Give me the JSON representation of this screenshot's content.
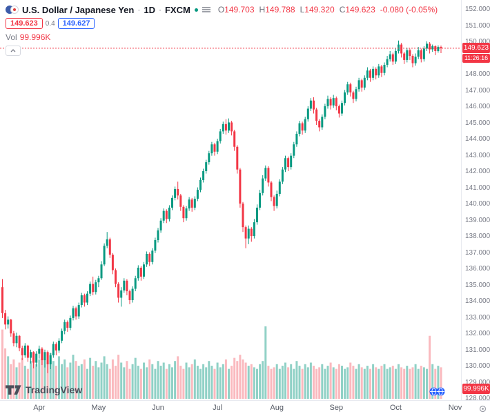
{
  "header": {
    "symbol_title": "U.S. Dollar / Japanese Yen",
    "separator": "·",
    "timeframe": "1D",
    "exchange": "FXCM",
    "ohlc": {
      "open_label": "O",
      "open": "149.703",
      "high_label": "H",
      "high": "149.788",
      "low_label": "L",
      "low": "149.320",
      "close_label": "C",
      "close": "149.623",
      "change": "-0.080 (-0.05%)"
    },
    "sell_price": "149.623",
    "spread": "0.4",
    "buy_price": "149.627",
    "volume_label": "Vol",
    "volume_separator": "·",
    "volume_value": "99.996K"
  },
  "badges": {
    "last_price": "149.623",
    "countdown": "11:26:16",
    "last_volume": "99.996K"
  },
  "price_axis": {
    "min": 128,
    "max": 152,
    "step": 1,
    "decimals": 3
  },
  "footer": {
    "logo_text": "TradingView"
  },
  "colors": {
    "up": "#089981",
    "down": "#f23645",
    "volume_up": "rgba(8,153,129,0.45)",
    "volume_down": "rgba(242,54,69,0.35)",
    "accent_blue": "#2962ff",
    "text_dark": "#131722",
    "text_gray": "#787b86"
  },
  "chart_data": {
    "type": "candlestick",
    "title": "U.S. Dollar / Japanese Yen · 1D · FXCM",
    "xlabel": "",
    "ylabel": "",
    "ylim": [
      127.9,
      152.4
    ],
    "grid": false,
    "legend_position": "none",
    "months": [
      {
        "label": "Apr",
        "day": 13
      },
      {
        "label": "May",
        "day": 34
      },
      {
        "label": "Jun",
        "day": 55
      },
      {
        "label": "Jul",
        "day": 76
      },
      {
        "label": "Aug",
        "day": 97
      },
      {
        "label": "Sep",
        "day": 118
      },
      {
        "label": "Oct",
        "day": 139
      },
      {
        "label": "Nov",
        "day": 160
      }
    ],
    "last": {
      "open": 149.703,
      "high": 149.788,
      "low": 149.32,
      "close": 149.623,
      "change": -0.08,
      "change_percent": -0.05
    },
    "candles": [
      [
        134.9,
        135.4,
        133.0,
        133.3
      ],
      [
        133.3,
        133.5,
        132.3,
        132.6
      ],
      [
        132.6,
        133.1,
        132.35,
        132.9
      ],
      [
        132.9,
        132.95,
        131.85,
        132.05
      ],
      [
        132.05,
        132.2,
        131.25,
        131.45
      ],
      [
        131.45,
        132.1,
        131.2,
        131.9
      ],
      [
        131.9,
        131.95,
        130.95,
        131.15
      ],
      [
        131.15,
        131.3,
        130.4,
        130.7
      ],
      [
        130.7,
        131.45,
        130.55,
        131.3
      ],
      [
        131.3,
        131.35,
        130.3,
        130.55
      ],
      [
        130.55,
        131.05,
        130.2,
        130.9
      ],
      [
        130.9,
        130.95,
        129.9,
        130.25
      ],
      [
        130.25,
        130.95,
        130.0,
        130.8
      ],
      [
        130.8,
        131.3,
        130.5,
        131.1
      ],
      [
        131.1,
        131.2,
        130.1,
        130.4
      ],
      [
        130.4,
        131.05,
        129.95,
        130.9
      ],
      [
        130.9,
        131.0,
        129.6,
        130.15
      ],
      [
        130.15,
        130.85,
        129.85,
        130.7
      ],
      [
        130.7,
        131.55,
        130.55,
        131.4
      ],
      [
        131.4,
        131.5,
        130.7,
        131.0
      ],
      [
        131.0,
        131.75,
        130.85,
        131.6
      ],
      [
        131.6,
        132.35,
        131.45,
        132.2
      ],
      [
        132.2,
        132.9,
        132.0,
        132.75
      ],
      [
        132.75,
        132.85,
        132.15,
        132.4
      ],
      [
        132.4,
        133.15,
        132.25,
        133.0
      ],
      [
        133.0,
        133.75,
        132.85,
        133.6
      ],
      [
        133.6,
        133.7,
        132.9,
        133.1
      ],
      [
        133.1,
        133.95,
        132.95,
        133.8
      ],
      [
        133.8,
        134.55,
        133.65,
        134.4
      ],
      [
        134.4,
        134.5,
        133.7,
        133.95
      ],
      [
        133.95,
        134.65,
        133.8,
        134.5
      ],
      [
        134.5,
        135.25,
        134.35,
        135.1
      ],
      [
        135.1,
        135.55,
        134.4,
        134.6
      ],
      [
        134.6,
        135.35,
        134.45,
        135.2
      ],
      [
        135.2,
        135.6,
        134.9,
        135.45
      ],
      [
        135.45,
        136.5,
        135.35,
        136.3
      ],
      [
        136.3,
        137.6,
        136.2,
        137.45
      ],
      [
        137.45,
        138.3,
        137.3,
        137.85
      ],
      [
        137.85,
        137.95,
        136.7,
        136.9
      ],
      [
        136.9,
        137.0,
        135.7,
        135.95
      ],
      [
        135.95,
        136.05,
        134.9,
        135.1
      ],
      [
        135.1,
        135.2,
        133.95,
        134.25
      ],
      [
        134.25,
        134.9,
        133.7,
        134.7
      ],
      [
        134.7,
        135.45,
        134.55,
        135.3
      ],
      [
        135.3,
        135.4,
        134.4,
        134.65
      ],
      [
        134.65,
        134.75,
        133.85,
        134.1
      ],
      [
        134.1,
        134.95,
        133.95,
        134.8
      ],
      [
        134.8,
        135.6,
        134.65,
        135.45
      ],
      [
        135.45,
        136.25,
        135.3,
        136.1
      ],
      [
        136.1,
        136.2,
        135.3,
        135.55
      ],
      [
        135.55,
        136.45,
        135.4,
        136.3
      ],
      [
        136.3,
        137.1,
        136.15,
        136.95
      ],
      [
        136.95,
        137.05,
        136.2,
        136.45
      ],
      [
        136.45,
        137.3,
        136.3,
        137.15
      ],
      [
        137.15,
        137.95,
        137.0,
        137.8
      ],
      [
        137.8,
        138.55,
        137.65,
        138.4
      ],
      [
        138.4,
        139.15,
        138.25,
        139.0
      ],
      [
        139.0,
        139.75,
        138.85,
        139.6
      ],
      [
        139.6,
        139.7,
        138.85,
        139.1
      ],
      [
        139.1,
        139.95,
        138.95,
        139.8
      ],
      [
        139.8,
        140.55,
        139.65,
        140.4
      ],
      [
        140.4,
        141.1,
        140.25,
        140.95
      ],
      [
        140.95,
        141.4,
        140.3,
        140.55
      ],
      [
        140.55,
        140.65,
        139.6,
        139.85
      ],
      [
        139.85,
        139.95,
        138.9,
        139.15
      ],
      [
        139.15,
        139.9,
        139.0,
        139.75
      ],
      [
        139.75,
        140.45,
        139.6,
        140.3
      ],
      [
        140.3,
        140.4,
        139.55,
        139.8
      ],
      [
        139.8,
        140.5,
        139.65,
        140.35
      ],
      [
        140.35,
        141.05,
        140.2,
        140.9
      ],
      [
        140.9,
        141.65,
        140.75,
        141.5
      ],
      [
        141.5,
        142.2,
        141.35,
        142.05
      ],
      [
        142.05,
        142.75,
        141.9,
        142.6
      ],
      [
        142.6,
        143.3,
        142.45,
        143.15
      ],
      [
        143.15,
        143.85,
        143.0,
        143.7
      ],
      [
        143.7,
        143.8,
        143.0,
        143.25
      ],
      [
        143.25,
        144.05,
        143.1,
        143.9
      ],
      [
        143.9,
        144.65,
        143.75,
        144.5
      ],
      [
        144.5,
        145.1,
        144.35,
        144.95
      ],
      [
        144.95,
        145.25,
        144.3,
        144.55
      ],
      [
        144.55,
        145.3,
        144.4,
        145.05
      ],
      [
        145.05,
        145.15,
        144.25,
        144.5
      ],
      [
        144.5,
        144.6,
        143.3,
        143.55
      ],
      [
        143.55,
        143.65,
        141.9,
        142.15
      ],
      [
        142.15,
        142.25,
        139.8,
        140.05
      ],
      [
        140.05,
        140.15,
        138.3,
        138.6
      ],
      [
        138.6,
        138.7,
        137.3,
        137.9
      ],
      [
        137.9,
        138.7,
        137.55,
        138.5
      ],
      [
        138.5,
        138.6,
        137.7,
        138.05
      ],
      [
        138.05,
        139.1,
        137.9,
        138.9
      ],
      [
        138.9,
        140.0,
        138.75,
        139.8
      ],
      [
        139.8,
        140.9,
        139.65,
        140.7
      ],
      [
        140.7,
        141.8,
        140.55,
        141.6
      ],
      [
        141.6,
        142.4,
        141.45,
        142.25
      ],
      [
        142.25,
        142.35,
        141.1,
        141.35
      ],
      [
        141.35,
        141.45,
        140.2,
        140.45
      ],
      [
        140.45,
        140.55,
        139.6,
        139.9
      ],
      [
        139.9,
        140.85,
        139.75,
        140.65
      ],
      [
        140.65,
        141.55,
        140.5,
        141.4
      ],
      [
        141.4,
        142.3,
        141.25,
        142.15
      ],
      [
        142.15,
        143.0,
        142.0,
        142.85
      ],
      [
        142.85,
        142.95,
        142.05,
        142.3
      ],
      [
        142.3,
        143.15,
        142.15,
        143.0
      ],
      [
        143.0,
        143.85,
        142.85,
        143.7
      ],
      [
        143.7,
        144.5,
        143.55,
        144.35
      ],
      [
        144.35,
        145.15,
        144.2,
        145.0
      ],
      [
        145.0,
        145.1,
        144.3,
        144.55
      ],
      [
        144.55,
        145.4,
        144.4,
        145.25
      ],
      [
        145.25,
        146.05,
        145.1,
        145.9
      ],
      [
        145.9,
        146.55,
        145.75,
        146.4
      ],
      [
        146.4,
        146.6,
        145.6,
        145.85
      ],
      [
        145.85,
        145.95,
        144.9,
        145.15
      ],
      [
        145.15,
        145.25,
        144.5,
        144.75
      ],
      [
        144.75,
        145.55,
        144.6,
        145.4
      ],
      [
        145.4,
        146.2,
        145.25,
        146.05
      ],
      [
        146.05,
        146.7,
        145.9,
        146.5
      ],
      [
        146.5,
        146.6,
        145.85,
        146.1
      ],
      [
        146.1,
        146.75,
        145.95,
        146.55
      ],
      [
        146.55,
        146.65,
        145.8,
        146.05
      ],
      [
        146.05,
        146.15,
        145.35,
        145.6
      ],
      [
        145.6,
        146.4,
        145.45,
        146.25
      ],
      [
        146.25,
        147.05,
        146.1,
        146.9
      ],
      [
        146.9,
        147.55,
        146.75,
        147.4
      ],
      [
        147.4,
        147.5,
        146.65,
        146.9
      ],
      [
        146.9,
        147.0,
        146.25,
        146.5
      ],
      [
        146.5,
        147.25,
        146.35,
        147.1
      ],
      [
        147.1,
        147.8,
        146.95,
        147.65
      ],
      [
        147.65,
        147.75,
        146.95,
        147.2
      ],
      [
        147.2,
        147.95,
        147.05,
        147.8
      ],
      [
        147.8,
        148.45,
        147.65,
        148.25
      ],
      [
        148.25,
        148.35,
        147.55,
        147.8
      ],
      [
        147.8,
        148.5,
        147.65,
        148.35
      ],
      [
        148.35,
        148.45,
        147.7,
        147.95
      ],
      [
        147.95,
        148.65,
        147.8,
        148.5
      ],
      [
        148.5,
        148.6,
        147.85,
        148.1
      ],
      [
        148.1,
        148.75,
        147.95,
        148.6
      ],
      [
        148.6,
        149.15,
        148.45,
        148.95
      ],
      [
        148.95,
        149.45,
        148.8,
        149.25
      ],
      [
        149.25,
        149.35,
        148.6,
        148.8
      ],
      [
        148.8,
        149.6,
        148.65,
        149.45
      ],
      [
        149.45,
        150.1,
        149.3,
        149.85
      ],
      [
        149.85,
        149.95,
        149.05,
        149.3
      ],
      [
        149.3,
        149.4,
        148.65,
        148.9
      ],
      [
        148.9,
        149.65,
        148.75,
        149.5
      ],
      [
        149.5,
        149.6,
        148.9,
        149.15
      ],
      [
        149.15,
        149.25,
        148.45,
        148.7
      ],
      [
        148.7,
        149.3,
        148.55,
        149.1
      ],
      [
        149.1,
        149.7,
        148.95,
        149.5
      ],
      [
        149.5,
        149.6,
        148.75,
        148.95
      ],
      [
        148.95,
        149.75,
        148.8,
        149.6
      ],
      [
        149.6,
        150.05,
        149.45,
        149.9
      ],
      [
        149.9,
        150.0,
        149.3,
        149.55
      ],
      [
        149.55,
        149.85,
        149.4,
        149.75
      ],
      [
        149.75,
        149.8,
        149.2,
        149.45
      ],
      [
        149.45,
        149.8,
        149.35,
        149.7
      ],
      [
        149.703,
        149.788,
        149.32,
        149.623
      ]
    ],
    "volumes": [
      220,
      160,
      135,
      110,
      125,
      100,
      115,
      130,
      105,
      95,
      120,
      140,
      110,
      125,
      160,
      130,
      115,
      145,
      120,
      105,
      135,
      110,
      125,
      100,
      115,
      140,
      120,
      105,
      110,
      125,
      95,
      130,
      105,
      120,
      100,
      115,
      135,
      110,
      95,
      125,
      105,
      140,
      115,
      100,
      120,
      95,
      110,
      130,
      105,
      95,
      115,
      100,
      125,
      110,
      95,
      120,
      105,
      115,
      95,
      110,
      100,
      120,
      135,
      105,
      95,
      115,
      100,
      110,
      125,
      105,
      95,
      110,
      100,
      120,
      105,
      95,
      115,
      100,
      110,
      125,
      95,
      105,
      130,
      120,
      140,
      125,
      115,
      105,
      110,
      100,
      95,
      110,
      120,
      230,
      105,
      95,
      100,
      110,
      95,
      105,
      115,
      100,
      110,
      95,
      120,
      105,
      95,
      110,
      100,
      115,
      105,
      95,
      100,
      110,
      95,
      105,
      115,
      100,
      95,
      110,
      105,
      95,
      100,
      115,
      105,
      95,
      110,
      100,
      95,
      105,
      95,
      110,
      100,
      95,
      105,
      110,
      95,
      100,
      105,
      95,
      110,
      100,
      95,
      105,
      95,
      100,
      110,
      95,
      105,
      100,
      95,
      200,
      110,
      95,
      105,
      99.996
    ],
    "volume_unit": "K"
  }
}
